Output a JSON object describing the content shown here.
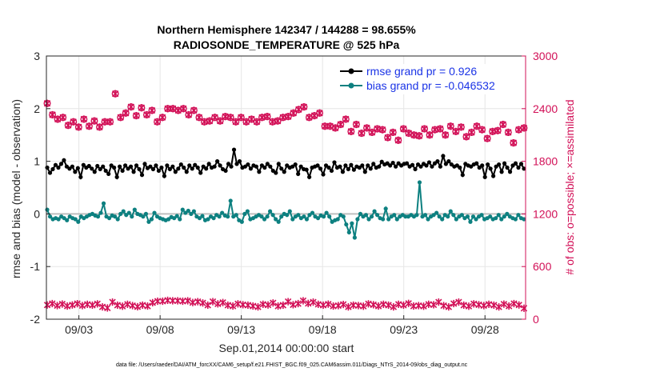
{
  "chart_data": {
    "type": "line",
    "title_line1": "Northern Hemisphere 142347 / 144288 = 98.655%",
    "title_line2": "RADIOSONDE_TEMPERATURE @ 525 hPa",
    "xlabel": "Sep.01,2014 00:00:00 start",
    "ylabel_left": "rmse and bias (model - observation)",
    "ylabel_right": "# of obs: o=possible; ×=assimilated",
    "x_tick_labels": [
      "09/03",
      "09/08",
      "09/13",
      "09/18",
      "09/23",
      "09/28"
    ],
    "x_tick_days": [
      3,
      8,
      13,
      18,
      23,
      28
    ],
    "xlim_days": [
      1.0,
      30.5
    ],
    "ylim_left": [
      -2,
      3
    ],
    "y_ticks_left": [
      "-2",
      "-1",
      "0",
      "1",
      "2",
      "3"
    ],
    "ylim_right": [
      0,
      3000
    ],
    "y_ticks_right": [
      "0",
      "600",
      "1200",
      "1800",
      "2400",
      "3000"
    ],
    "grid": true,
    "legend_position": "top-right",
    "colors": {
      "rmse": "#000000",
      "bias": "#0d8080",
      "obs": "#d21057",
      "legend_text": "#1a33e6",
      "zero_line": "#bfbfbf"
    },
    "series": [
      {
        "name": "rmse grand pr = 0.926",
        "axis": "left",
        "values": [
          0.88,
          0.78,
          0.85,
          0.93,
          0.88,
          0.95,
          1.02,
          0.9,
          0.86,
          0.9,
          0.8,
          0.87,
          0.7,
          0.93,
          0.88,
          0.91,
          0.86,
          0.8,
          0.91,
          0.85,
          0.9,
          0.82,
          0.76,
          0.92,
          0.88,
          0.7,
          0.9,
          0.82,
          0.92,
          0.86,
          0.9,
          0.8,
          0.92,
          0.85,
          0.74,
          0.95,
          0.87,
          0.9,
          0.85,
          0.92,
          0.82,
          0.88,
          0.72,
          0.92,
          0.85,
          0.9,
          0.8,
          0.86,
          0.94,
          0.88,
          0.8,
          0.92,
          0.86,
          0.93,
          0.88,
          0.78,
          0.9,
          0.86,
          0.95,
          0.88,
          0.9,
          1.0,
          0.92,
          0.85,
          0.82,
          0.95,
          0.9,
          1.22,
          0.95,
          1.0,
          0.88,
          0.9,
          0.94,
          0.86,
          0.92,
          0.9,
          0.8,
          0.92,
          0.88,
          0.95,
          0.9,
          0.82,
          0.78,
          0.95,
          0.86,
          0.8,
          0.92,
          0.88,
          0.9,
          0.94,
          0.76,
          0.9,
          0.85,
          0.84,
          0.7,
          0.88,
          0.9,
          0.92,
          0.86,
          0.75,
          0.92,
          0.88,
          0.82,
          0.98,
          0.88,
          0.9,
          0.8,
          0.92,
          0.85,
          0.93,
          0.84,
          0.9,
          0.88,
          0.92,
          0.8,
          0.92,
          0.86,
          0.95,
          0.88,
          0.9,
          0.99,
          0.94,
          0.96,
          0.92,
          0.97,
          0.9,
          0.96,
          0.92,
          0.95,
          0.96,
          0.9,
          0.93,
          0.85,
          0.94,
          0.9,
          0.95,
          0.92,
          0.98,
          0.9,
          0.96,
          1.0,
          0.9,
          1.1,
          0.95,
          1.0,
          0.94,
          0.9,
          0.92,
          0.88,
          0.74,
          0.95,
          0.92,
          0.9,
          0.94,
          0.96,
          0.88,
          0.92,
          0.7,
          0.94,
          0.86,
          0.72,
          0.9,
          0.94,
          0.8,
          0.96,
          0.88,
          0.8,
          0.92,
          0.96,
          0.88,
          0.95,
          0.86
        ]
      },
      {
        "name": "bias grand pr = -0.046532",
        "axis": "left",
        "values": [
          0.08,
          -0.05,
          -0.1,
          -0.08,
          -0.1,
          -0.05,
          -0.08,
          -0.12,
          -0.05,
          -0.08,
          -0.1,
          -0.15,
          -0.05,
          -0.08,
          -0.05,
          -0.02,
          0.0,
          -0.03,
          -0.05,
          0.02,
          0.2,
          -0.05,
          -0.08,
          -0.03,
          -0.05,
          -0.1,
          0.0,
          0.05,
          -0.02,
          0.02,
          -0.05,
          0.08,
          0.0,
          -0.02,
          -0.05,
          0.0,
          -0.15,
          -0.1,
          0.02,
          -0.05,
          -0.08,
          -0.1,
          -0.12,
          -0.1,
          -0.06,
          -0.08,
          -0.04,
          -0.1,
          0.08,
          0.02,
          0.06,
          0.0,
          0.05,
          -0.05,
          -0.08,
          -0.04,
          -0.12,
          -0.1,
          -0.05,
          -0.08,
          -0.02,
          -0.05,
          0.02,
          -0.03,
          -0.05,
          0.25,
          -0.05,
          -0.02,
          -0.12,
          -0.15,
          0.0,
          0.05,
          -0.1,
          -0.08,
          -0.05,
          -0.02,
          -0.05,
          -0.1,
          -0.05,
          0.05,
          -0.02,
          -0.1,
          -0.15,
          -0.05,
          0.0,
          -0.02,
          0.05,
          -0.1,
          -0.05,
          -0.02,
          -0.08,
          -0.05,
          -0.1,
          -0.02,
          0.02,
          -0.05,
          -0.08,
          -0.03,
          -0.05,
          0.02,
          -0.05,
          -0.15,
          -0.12,
          -0.1,
          -0.02,
          -0.05,
          -0.2,
          -0.35,
          -0.18,
          -0.45,
          -0.1,
          0.0,
          -0.05,
          -0.02,
          -0.1,
          -0.05,
          0.05,
          -0.02,
          -0.08,
          -0.1,
          0.1,
          -0.1,
          -0.05,
          -0.02,
          -0.1,
          -0.05,
          -0.02,
          -0.05,
          -0.05,
          -0.02,
          -0.05,
          -0.02,
          0.6,
          -0.05,
          -0.02,
          -0.1,
          -0.05,
          -0.02,
          0.02,
          -0.05,
          -0.1,
          -0.02,
          -0.05,
          0.05,
          -0.02,
          -0.1,
          -0.05,
          -0.02,
          -0.08,
          -0.05,
          -0.15,
          -0.05,
          -0.1,
          -0.05,
          -0.02,
          -0.1,
          -0.08,
          -0.05,
          -0.1,
          -0.08,
          -0.02,
          -0.1,
          -0.05,
          0.0,
          -0.05,
          -0.08,
          -0.1,
          -0.02,
          -0.08,
          -0.1
        ]
      },
      {
        "name": "possible",
        "axis": "right",
        "values": [
          2460,
          2330,
          2280,
          2300,
          2210,
          2250,
          2190,
          2280,
          2200,
          2260,
          2190,
          2250,
          2250,
          2570,
          2300,
          2350,
          2420,
          2320,
          2410,
          2330,
          2380,
          2250,
          2300,
          2400,
          2400,
          2380,
          2400,
          2330,
          2380,
          2300,
          2250,
          2260,
          2300,
          2260,
          2310,
          2300,
          2250,
          2300,
          2250,
          2280,
          2250,
          2300,
          2310,
          2250,
          2260,
          2300,
          2310,
          2350,
          2390,
          2420,
          2300,
          2320,
          2350,
          2200,
          2200,
          2180,
          2220,
          2280,
          2140,
          2220,
          2120,
          2180,
          2130,
          2170,
          2160,
          2070,
          2130,
          2040,
          2170,
          2120,
          2100,
          2090,
          2170,
          2100,
          2160,
          2170,
          2100,
          2200,
          2140,
          2190,
          2080,
          2130,
          2200,
          2160,
          2060,
          2140,
          2150,
          2220,
          2130,
          2010,
          2160,
          2180
        ]
      },
      {
        "name": "assimilated",
        "axis": "right",
        "values": [
          162,
          178,
          155,
          173,
          150,
          162,
          177,
          155,
          170,
          160,
          175,
          140,
          128,
          195,
          160,
          148,
          170,
          155,
          142,
          160,
          150,
          188,
          205,
          205,
          215,
          210,
          210,
          205,
          210,
          190,
          200,
          185,
          160,
          200,
          175,
          190,
          160,
          150,
          175,
          165,
          160,
          150,
          140,
          170,
          162,
          185,
          150,
          160,
          200,
          165,
          178,
          210,
          180,
          195,
          170,
          160,
          172,
          150,
          155,
          168,
          140,
          160,
          155,
          148,
          175,
          165,
          150,
          170,
          160,
          140,
          170,
          160,
          180,
          150,
          155,
          148,
          170,
          165,
          195,
          155,
          140,
          178,
          195,
          160,
          148,
          175,
          165,
          155,
          170,
          160,
          140,
          172,
          150,
          178,
          162,
          125
        ]
      }
    ]
  },
  "legend": {
    "rmse_label": "rmse grand pr = 0.926",
    "bias_label": "bias grand pr = -0.046532"
  },
  "footer": "data file: /Users/raeder/DAI/ATM_forcXX/CAM6_setup/f.e21.FHIST_BGC.f09_025.CAM6assim.011/Diags_NTrS_2014-09/obs_diag_output.nc"
}
